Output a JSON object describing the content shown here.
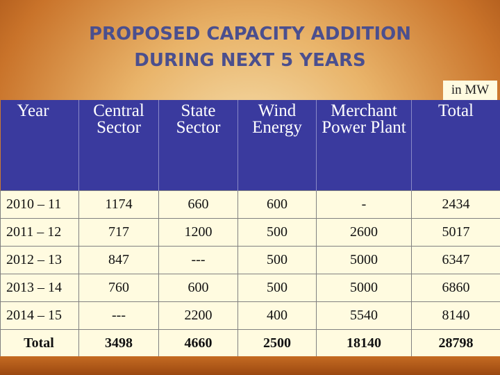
{
  "title_line1": "PROPOSED CAPACITY ADDITION",
  "title_line2": "DURING NEXT 5 YEARS",
  "unit": "in MW",
  "headers": [
    "Year",
    "Central Sector",
    "State Sector",
    "Wind Energy",
    "Merchant Power Plant",
    "Total"
  ],
  "rows": [
    [
      "2010 – 11",
      "1174",
      "660",
      "600",
      "-",
      "2434"
    ],
    [
      "2011 – 12",
      "717",
      "1200",
      "500",
      "2600",
      "5017"
    ],
    [
      "2012 – 13",
      "847",
      "---",
      "500",
      "5000",
      "6347"
    ],
    [
      "2013 – 14",
      "760",
      "600",
      "500",
      "5000",
      "6860"
    ],
    [
      "2014 – 15",
      "---",
      "2200",
      "400",
      "5540",
      "8140"
    ]
  ],
  "total_row": [
    "Total",
    "3498",
    "4660",
    "2500",
    "18140",
    "28798"
  ]
}
